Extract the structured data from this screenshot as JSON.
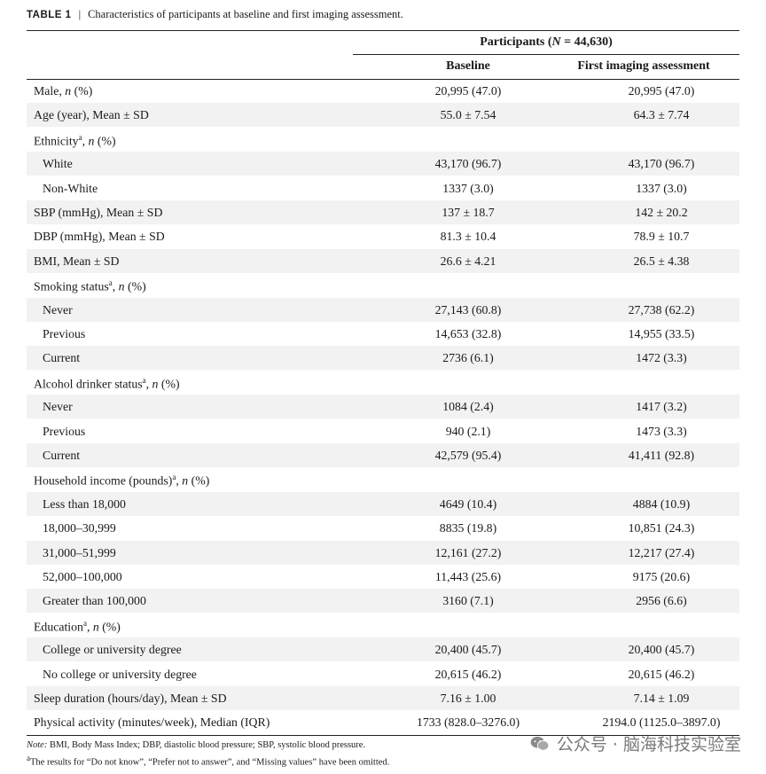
{
  "caption": {
    "label": "TABLE 1",
    "separator": "|",
    "title": "Characteristics of participants at baseline and first imaging assessment."
  },
  "header": {
    "group_prefix": "Participants (",
    "group_n": "N",
    "group_suffix": " = 44,630)",
    "col1": "Baseline",
    "col2": "First imaging assessment"
  },
  "rows": [
    {
      "label": "Male, ",
      "italic": "n",
      "after": " (%)",
      "sup": "",
      "indent": false,
      "baseline": "20,995 (47.0)",
      "imaging": "20,995 (47.0)"
    },
    {
      "label": "Age (year), Mean ± SD",
      "italic": "",
      "after": "",
      "sup": "",
      "indent": false,
      "baseline": "55.0 ± 7.54",
      "imaging": "64.3 ± 7.74"
    },
    {
      "label": "Ethnicity",
      "italic": "n",
      "after": " (%)",
      "sup": "a",
      "indent": false,
      "baseline": "",
      "imaging": ""
    },
    {
      "label": "White",
      "italic": "",
      "after": "",
      "sup": "",
      "indent": true,
      "baseline": "43,170 (96.7)",
      "imaging": "43,170 (96.7)"
    },
    {
      "label": "Non-White",
      "italic": "",
      "after": "",
      "sup": "",
      "indent": true,
      "baseline": "1337 (3.0)",
      "imaging": "1337 (3.0)"
    },
    {
      "label": "SBP (mmHg), Mean ± SD",
      "italic": "",
      "after": "",
      "sup": "",
      "indent": false,
      "baseline": "137 ± 18.7",
      "imaging": "142 ± 20.2"
    },
    {
      "label": "DBP (mmHg), Mean ± SD",
      "italic": "",
      "after": "",
      "sup": "",
      "indent": false,
      "baseline": "81.3 ± 10.4",
      "imaging": "78.9 ± 10.7"
    },
    {
      "label": "BMI, Mean ± SD",
      "italic": "",
      "after": "",
      "sup": "",
      "indent": false,
      "baseline": "26.6 ± 4.21",
      "imaging": "26.5 ± 4.38"
    },
    {
      "label": "Smoking status",
      "italic": "n",
      "after": " (%)",
      "sup": "a",
      "indent": false,
      "baseline": "",
      "imaging": ""
    },
    {
      "label": "Never",
      "italic": "",
      "after": "",
      "sup": "",
      "indent": true,
      "baseline": "27,143 (60.8)",
      "imaging": "27,738 (62.2)"
    },
    {
      "label": "Previous",
      "italic": "",
      "after": "",
      "sup": "",
      "indent": true,
      "baseline": "14,653 (32.8)",
      "imaging": "14,955 (33.5)"
    },
    {
      "label": "Current",
      "italic": "",
      "after": "",
      "sup": "",
      "indent": true,
      "baseline": "2736 (6.1)",
      "imaging": "1472 (3.3)"
    },
    {
      "label": "Alcohol drinker status",
      "italic": "n",
      "after": " (%)",
      "sup": "a",
      "indent": false,
      "baseline": "",
      "imaging": ""
    },
    {
      "label": "Never",
      "italic": "",
      "after": "",
      "sup": "",
      "indent": true,
      "baseline": "1084 (2.4)",
      "imaging": "1417 (3.2)"
    },
    {
      "label": "Previous",
      "italic": "",
      "after": "",
      "sup": "",
      "indent": true,
      "baseline": "940 (2.1)",
      "imaging": "1473 (3.3)"
    },
    {
      "label": "Current",
      "italic": "",
      "after": "",
      "sup": "",
      "indent": true,
      "baseline": "42,579 (95.4)",
      "imaging": "41,411 (92.8)"
    },
    {
      "label": "Household income (pounds)",
      "italic": "n",
      "after": " (%)",
      "sup": "a",
      "indent": false,
      "baseline": "",
      "imaging": ""
    },
    {
      "label": "Less than 18,000",
      "italic": "",
      "after": "",
      "sup": "",
      "indent": true,
      "baseline": "4649 (10.4)",
      "imaging": "4884 (10.9)"
    },
    {
      "label": "18,000–30,999",
      "italic": "",
      "after": "",
      "sup": "",
      "indent": true,
      "baseline": "8835 (19.8)",
      "imaging": "10,851 (24.3)"
    },
    {
      "label": "31,000–51,999",
      "italic": "",
      "after": "",
      "sup": "",
      "indent": true,
      "baseline": "12,161 (27.2)",
      "imaging": "12,217 (27.4)"
    },
    {
      "label": "52,000–100,000",
      "italic": "",
      "after": "",
      "sup": "",
      "indent": true,
      "baseline": "11,443 (25.6)",
      "imaging": "9175 (20.6)"
    },
    {
      "label": "Greater than 100,000",
      "italic": "",
      "after": "",
      "sup": "",
      "indent": true,
      "baseline": "3160 (7.1)",
      "imaging": "2956 (6.6)"
    },
    {
      "label": "Education",
      "italic": "n",
      "after": " (%)",
      "sup": "a",
      "indent": false,
      "baseline": "",
      "imaging": ""
    },
    {
      "label": "College or university degree",
      "italic": "",
      "after": "",
      "sup": "",
      "indent": true,
      "baseline": "20,400 (45.7)",
      "imaging": "20,400 (45.7)"
    },
    {
      "label": "No college or university degree",
      "italic": "",
      "after": "",
      "sup": "",
      "indent": true,
      "baseline": "20,615 (46.2)",
      "imaging": "20,615 (46.2)"
    },
    {
      "label": "Sleep duration (hours/day), Mean ± SD",
      "italic": "",
      "after": "",
      "sup": "",
      "indent": false,
      "baseline": "7.16 ± 1.00",
      "imaging": "7.14 ± 1.09"
    },
    {
      "label": "Physical activity (minutes/week), Median (IQR)",
      "italic": "",
      "after": "",
      "sup": "",
      "indent": false,
      "baseline": "1733 (828.0–3276.0)",
      "imaging": "2194.0 (1125.0–3897.0)"
    }
  ],
  "notes": {
    "note_label": "Note:",
    "note_text": " BMI, Body Mass Index; DBP, diastolic blood pressure; SBP, systolic blood pressure.",
    "footnote_sup": "a",
    "footnote_text": "The results for “Do not know”, “Prefer not to answer”, and “Missing values” have been omitted."
  },
  "watermark": {
    "text": "公众号 · 脑海科技实验室",
    "icon": "wechat-icon"
  }
}
